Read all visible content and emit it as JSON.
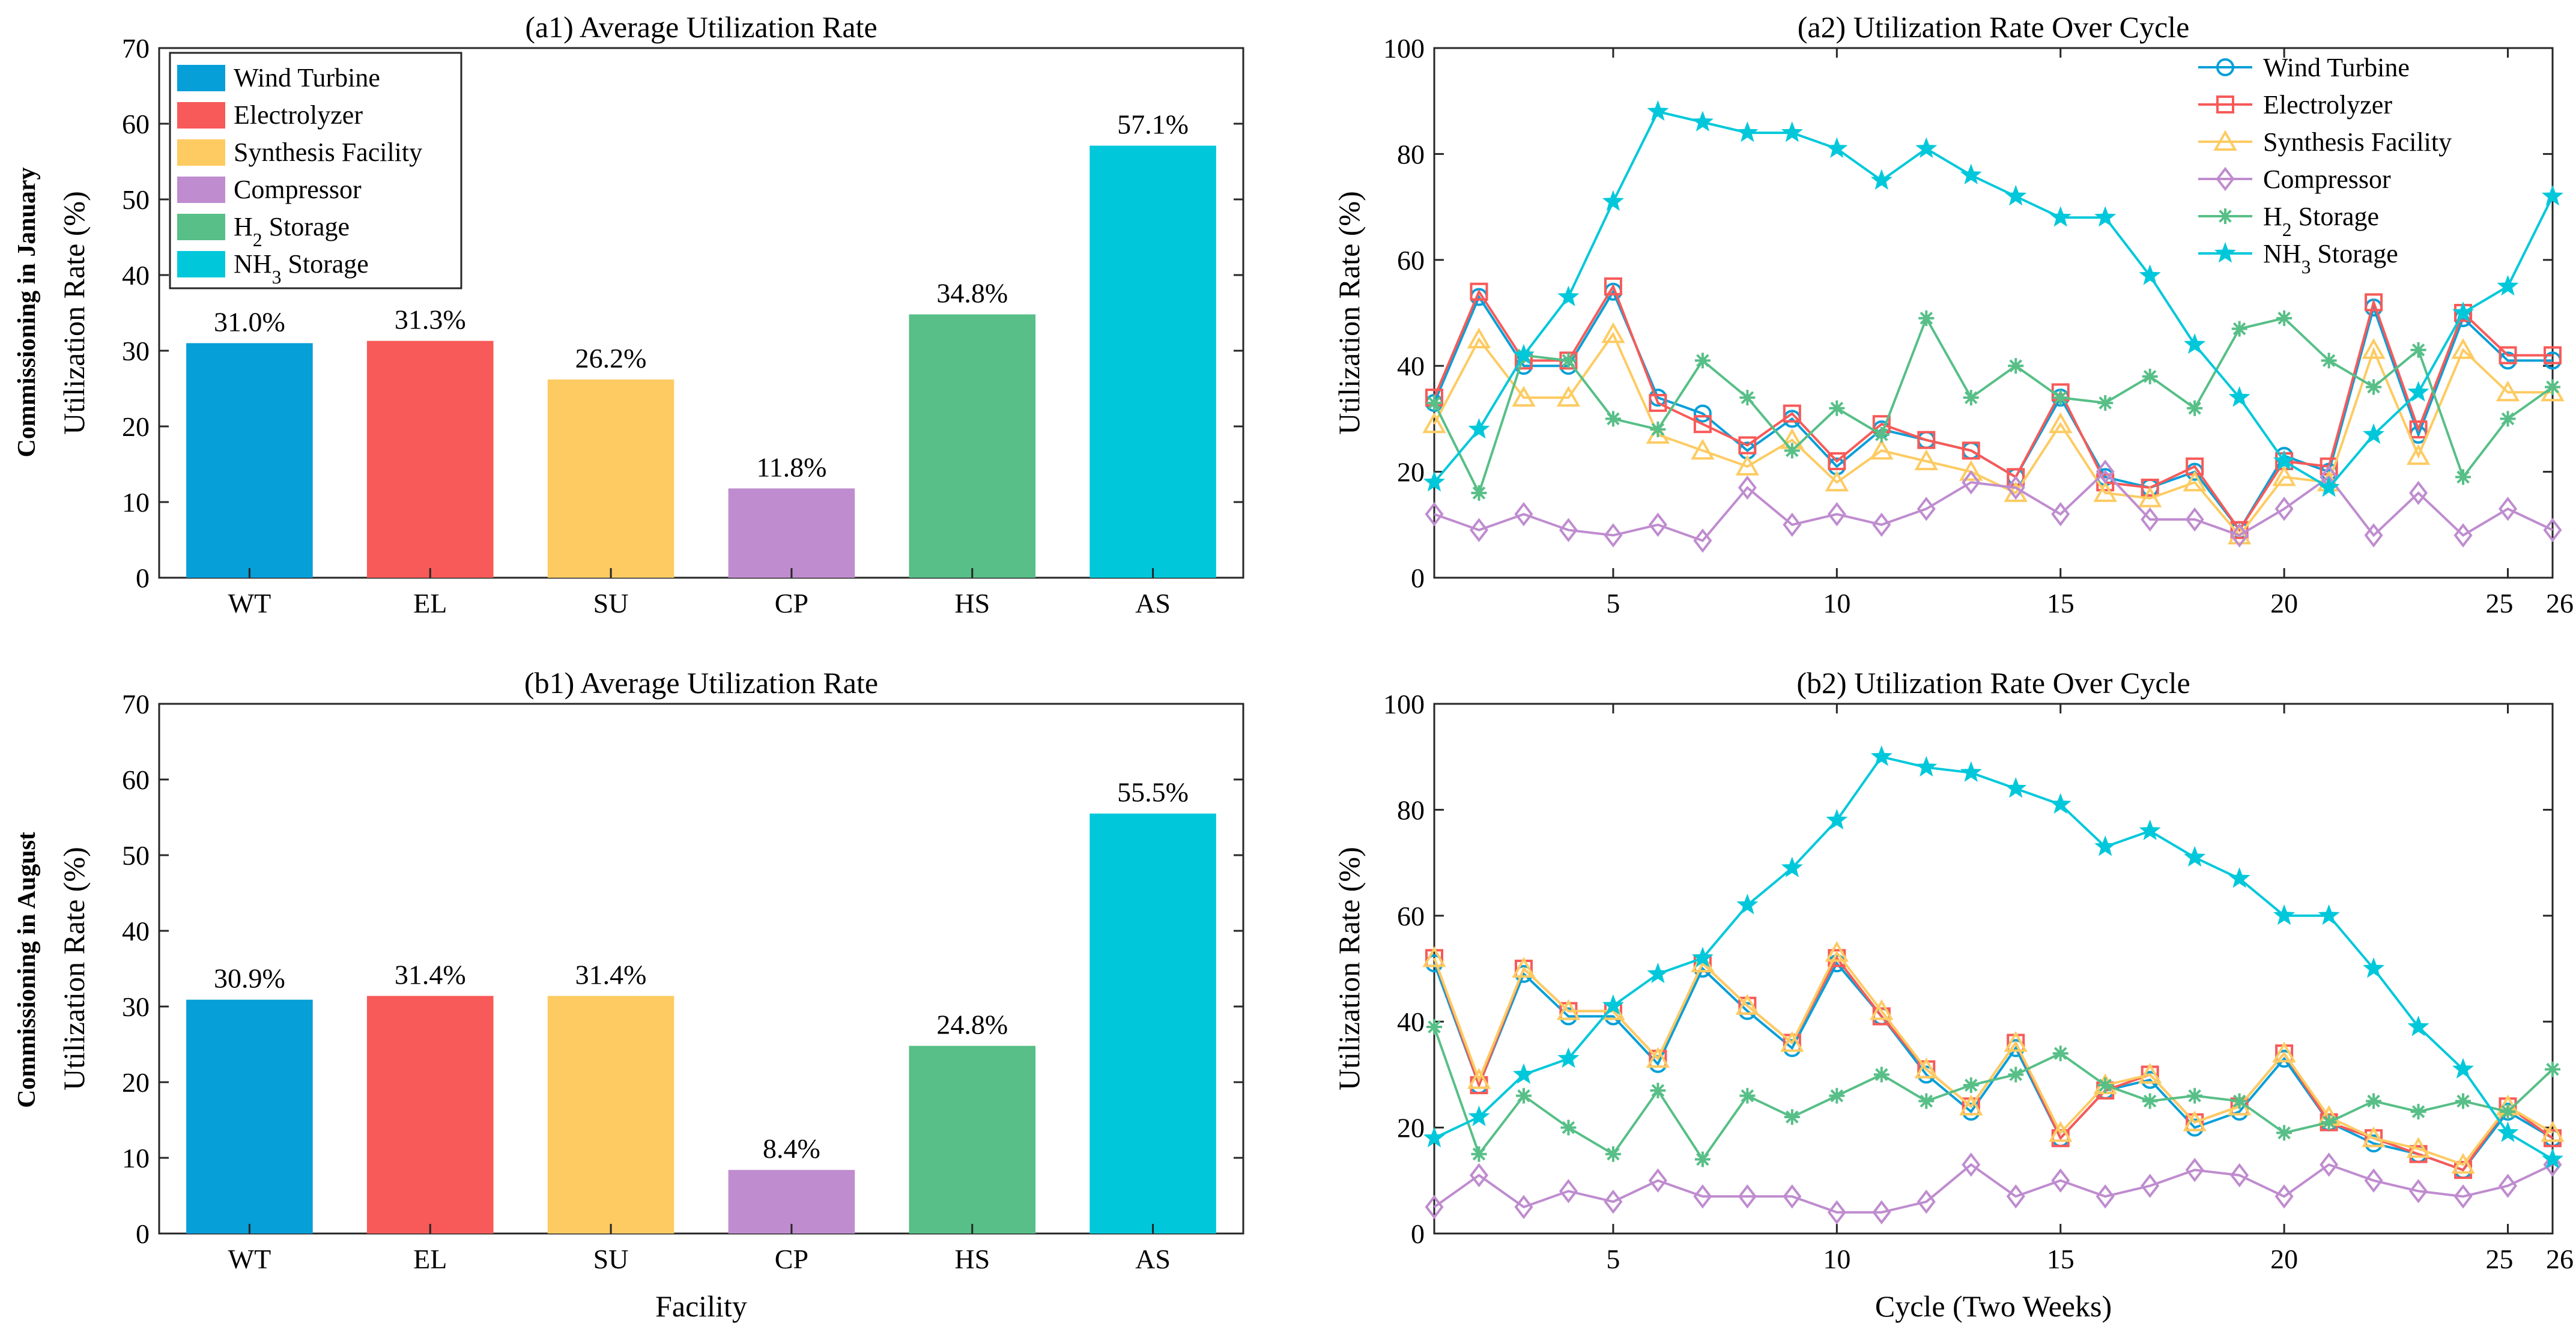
{
  "row_labels": {
    "top": "Commissioning in January",
    "bottom": "Commissioning in August"
  },
  "colors": {
    "wt": "#069fd8",
    "el": "#f75a58",
    "su": "#fdcb62",
    "cp": "#bf8ccf",
    "hs": "#57bf87",
    "as": "#00c8da"
  },
  "chart_data": [
    {
      "id": "a1",
      "type": "bar",
      "title": "(a1) Average Utilization Rate",
      "xlabel": "",
      "ylabel": "Utilization Rate (%)",
      "categories": [
        "WT",
        "EL",
        "SU",
        "CP",
        "HS",
        "AS"
      ],
      "values": [
        31.0,
        31.3,
        26.2,
        11.8,
        34.8,
        57.1
      ],
      "value_labels": [
        "31.0%",
        "31.3%",
        "26.2%",
        "11.8%",
        "34.8%",
        "57.1%"
      ],
      "ylim": [
        0,
        70
      ],
      "yticks": [
        0,
        10,
        20,
        30,
        40,
        50,
        60,
        70
      ],
      "legend": {
        "position": "top-left",
        "entries": [
          {
            "label": "Wind Turbine",
            "color_key": "wt"
          },
          {
            "label": "Electrolyzer",
            "color_key": "el"
          },
          {
            "label": "Synthesis Facility",
            "color_key": "su"
          },
          {
            "label": "Compressor",
            "color_key": "cp"
          },
          {
            "label": "H",
            "sub": "2",
            "rest": " Storage",
            "color_key": "hs"
          },
          {
            "label": "NH",
            "sub": "3",
            "rest": " Storage",
            "color_key": "as"
          }
        ]
      }
    },
    {
      "id": "a2",
      "type": "line",
      "title": "(a2) Utilization Rate Over Cycle",
      "xlabel": "",
      "ylabel": "Utilization Rate (%)",
      "xlim": [
        1,
        26
      ],
      "ylim": [
        0,
        100
      ],
      "xticks": [
        5,
        10,
        15,
        20,
        25,
        26
      ],
      "yticks": [
        0,
        20,
        40,
        60,
        80,
        100
      ],
      "legend": {
        "position": "top-right"
      },
      "series": [
        {
          "name": "Wind Turbine",
          "color_key": "wt",
          "marker": "circle",
          "values": [
            33,
            53,
            40,
            40,
            54,
            34,
            31,
            24,
            30,
            21,
            28,
            26,
            24,
            19,
            34,
            19,
            17,
            20,
            9,
            23,
            20,
            51,
            27,
            49,
            41,
            41
          ]
        },
        {
          "name": "Electrolyzer",
          "color_key": "el",
          "marker": "square",
          "values": [
            34,
            54,
            41,
            41,
            55,
            33,
            29,
            25,
            31,
            22,
            29,
            26,
            24,
            19,
            35,
            18,
            17,
            21,
            9,
            22,
            21,
            52,
            28,
            50,
            42,
            42
          ]
        },
        {
          "name": "Synthesis Facility",
          "color_key": "su",
          "marker": "triangle",
          "values": [
            29,
            45,
            34,
            34,
            46,
            27,
            24,
            21,
            26,
            18,
            24,
            22,
            20,
            16,
            29,
            16,
            15,
            18,
            8,
            19,
            18,
            43,
            23,
            43,
            35,
            35
          ]
        },
        {
          "name": "Compressor",
          "color_key": "cp",
          "marker": "diamond",
          "values": [
            12,
            9,
            12,
            9,
            8,
            10,
            7,
            17,
            10,
            12,
            10,
            13,
            18,
            17,
            12,
            20,
            11,
            11,
            8,
            13,
            19,
            8,
            16,
            8,
            13,
            9
          ]
        },
        {
          "name": "H",
          "sub": "2",
          "rest": " Storage",
          "color_key": "hs",
          "marker": "asterisk",
          "values": [
            33,
            16,
            42,
            41,
            30,
            28,
            41,
            34,
            24,
            32,
            27,
            49,
            34,
            40,
            34,
            33,
            38,
            32,
            47,
            49,
            41,
            36,
            43,
            19,
            30,
            36
          ]
        },
        {
          "name": "NH",
          "sub": "3",
          "rest": " Storage",
          "color_key": "as",
          "marker": "star",
          "values": [
            18,
            28,
            42,
            53,
            71,
            88,
            86,
            84,
            84,
            81,
            75,
            81,
            76,
            72,
            68,
            68,
            57,
            44,
            34,
            22,
            17,
            27,
            35,
            50,
            55,
            72
          ]
        }
      ]
    },
    {
      "id": "b1",
      "type": "bar",
      "title": "(b1) Average Utilization Rate",
      "xlabel": "Facility",
      "ylabel": "Utilization Rate (%)",
      "categories": [
        "WT",
        "EL",
        "SU",
        "CP",
        "HS",
        "AS"
      ],
      "values": [
        30.9,
        31.4,
        31.4,
        8.4,
        24.8,
        55.5
      ],
      "value_labels": [
        "30.9%",
        "31.4%",
        "31.4%",
        "8.4%",
        "24.8%",
        "55.5%"
      ],
      "ylim": [
        0,
        70
      ],
      "yticks": [
        0,
        10,
        20,
        30,
        40,
        50,
        60,
        70
      ]
    },
    {
      "id": "b2",
      "type": "line",
      "title": "(b2) Utilization Rate Over Cycle",
      "xlabel": "Cycle (Two Weeks)",
      "ylabel": "Utilization Rate (%)",
      "xlim": [
        1,
        26
      ],
      "ylim": [
        0,
        100
      ],
      "xticks": [
        5,
        10,
        15,
        20,
        25,
        26
      ],
      "yticks": [
        0,
        20,
        40,
        60,
        80,
        100
      ],
      "series": [
        {
          "name": "Wind Turbine",
          "color_key": "wt",
          "marker": "circle",
          "values": [
            51,
            28,
            49,
            41,
            41,
            32,
            50,
            42,
            35,
            51,
            41,
            30,
            23,
            35,
            18,
            27,
            29,
            20,
            23,
            33,
            21,
            17,
            15,
            12,
            23,
            18
          ]
        },
        {
          "name": "Electrolyzer",
          "color_key": "el",
          "marker": "square",
          "values": [
            52,
            28,
            50,
            42,
            42,
            33,
            51,
            43,
            36,
            52,
            41,
            31,
            24,
            36,
            18,
            27,
            30,
            21,
            24,
            34,
            21,
            18,
            15,
            12,
            24,
            18
          ]
        },
        {
          "name": "Synthesis Facility",
          "color_key": "su",
          "marker": "triangle",
          "values": [
            52,
            29,
            50,
            42,
            42,
            33,
            51,
            43,
            36,
            53,
            42,
            31,
            24,
            36,
            19,
            28,
            30,
            21,
            24,
            34,
            22,
            18,
            16,
            13,
            24,
            19
          ]
        },
        {
          "name": "Compressor",
          "color_key": "cp",
          "marker": "diamond",
          "values": [
            5,
            11,
            5,
            8,
            6,
            10,
            7,
            7,
            7,
            4,
            4,
            6,
            13,
            7,
            10,
            7,
            9,
            12,
            11,
            7,
            13,
            10,
            8,
            7,
            9,
            13
          ]
        },
        {
          "name": "H",
          "sub": "2",
          "rest": " Storage",
          "color_key": "hs",
          "marker": "asterisk",
          "values": [
            39,
            15,
            26,
            20,
            15,
            27,
            14,
            26,
            22,
            26,
            30,
            25,
            28,
            30,
            34,
            28,
            25,
            26,
            25,
            19,
            21,
            25,
            23,
            25,
            23,
            31
          ]
        },
        {
          "name": "NH",
          "sub": "3",
          "rest": " Storage",
          "color_key": "as",
          "marker": "star",
          "values": [
            18,
            22,
            30,
            33,
            43,
            49,
            52,
            62,
            69,
            78,
            90,
            88,
            87,
            84,
            81,
            73,
            76,
            71,
            67,
            60,
            60,
            50,
            39,
            31,
            19,
            14
          ]
        }
      ]
    }
  ]
}
